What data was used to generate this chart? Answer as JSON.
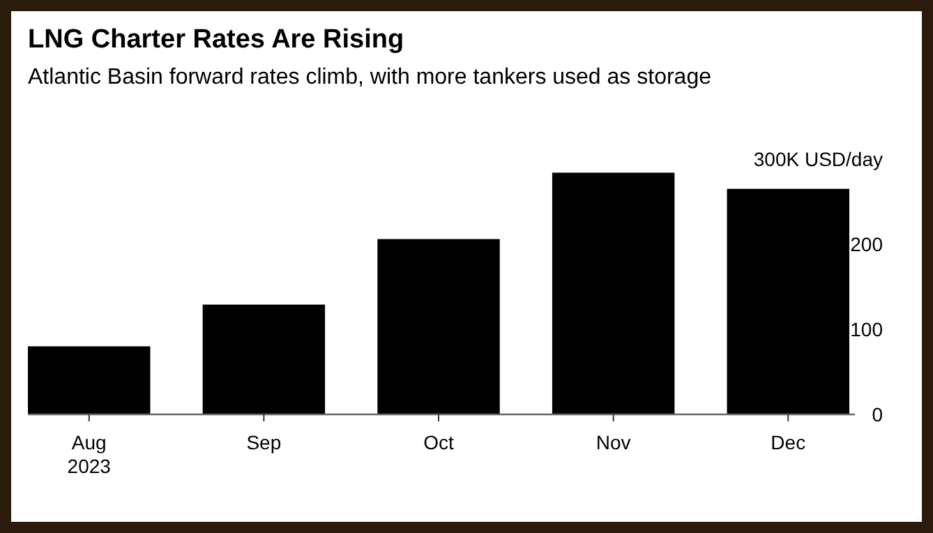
{
  "chart_data": {
    "type": "bar",
    "title": "LNG Charter Rates Are Rising",
    "subtitle": "Atlantic Basin forward rates climb, with more tankers used as storage",
    "categories": [
      "Aug 2023",
      "Sep",
      "Oct",
      "Nov",
      "Dec"
    ],
    "values": [
      80,
      129,
      206,
      284,
      265
    ],
    "color": "#000000",
    "ylim": [
      0,
      300
    ],
    "yticks": [
      0,
      100,
      200,
      {
        "value": 300,
        "label": "300K USD/day"
      }
    ],
    "grid": false
  }
}
